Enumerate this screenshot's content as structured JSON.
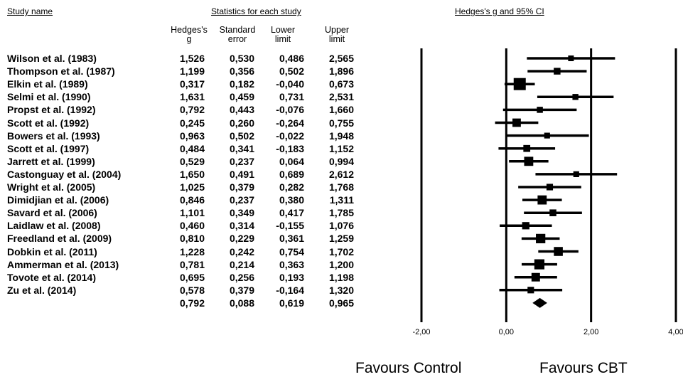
{
  "headers": {
    "study_name": "Study name",
    "statistics": "Statistics for each study",
    "plot_title": "Hedges's g and 95% CI"
  },
  "columns": [
    {
      "line1": "Hedges's",
      "line2": "g"
    },
    {
      "line1": "Standard",
      "line2": "error"
    },
    {
      "line1": "Lower",
      "line2": "limit"
    },
    {
      "line1": "Upper",
      "line2": "limit"
    }
  ],
  "chart_data": {
    "type": "forest",
    "title": "Hedges's g and 95% CI",
    "xlim": [
      -2,
      4
    ],
    "xticks": [
      {
        "value": -2,
        "label": "-2,00"
      },
      {
        "value": 0,
        "label": "0,00"
      },
      {
        "value": 2,
        "label": "2,00"
      },
      {
        "value": 4,
        "label": "4,00"
      }
    ],
    "studies": [
      {
        "name": "Wilson et al. (1983)",
        "g": 1.526,
        "se": 0.53,
        "lower": 0.486,
        "upper": 2.565,
        "g_label": "1,526",
        "se_label": "0,530",
        "lower_label": "0,486",
        "upper_label": "2,565"
      },
      {
        "name": "Thompson et al. (1987)",
        "g": 1.199,
        "se": 0.356,
        "lower": 0.502,
        "upper": 1.896,
        "g_label": "1,199",
        "se_label": "0,356",
        "lower_label": "0,502",
        "upper_label": "1,896"
      },
      {
        "name": "Elkin et al. (1989)",
        "g": 0.317,
        "se": 0.182,
        "lower": -0.04,
        "upper": 0.673,
        "g_label": "0,317",
        "se_label": "0,182",
        "lower_label": "-0,040",
        "upper_label": "0,673"
      },
      {
        "name": "Selmi et al. (1990)",
        "g": 1.631,
        "se": 0.459,
        "lower": 0.731,
        "upper": 2.531,
        "g_label": "1,631",
        "se_label": "0,459",
        "lower_label": "0,731",
        "upper_label": "2,531"
      },
      {
        "name": "Propst et al. (1992)",
        "g": 0.792,
        "se": 0.443,
        "lower": -0.076,
        "upper": 1.66,
        "g_label": "0,792",
        "se_label": "0,443",
        "lower_label": "-0,076",
        "upper_label": "1,660"
      },
      {
        "name": "Scott et al. (1992)",
        "g": 0.245,
        "se": 0.26,
        "lower": -0.264,
        "upper": 0.755,
        "g_label": "0,245",
        "se_label": "0,260",
        "lower_label": "-0,264",
        "upper_label": "0,755"
      },
      {
        "name": "Bowers et al. (1993)",
        "g": 0.963,
        "se": 0.502,
        "lower": -0.022,
        "upper": 1.948,
        "g_label": "0,963",
        "se_label": "0,502",
        "lower_label": "-0,022",
        "upper_label": "1,948"
      },
      {
        "name": "Scott et al. (1997)",
        "g": 0.484,
        "se": 0.341,
        "lower": -0.183,
        "upper": 1.152,
        "g_label": "0,484",
        "se_label": "0,341",
        "lower_label": "-0,183",
        "upper_label": "1,152"
      },
      {
        "name": "Jarrett et al. (1999)",
        "g": 0.529,
        "se": 0.237,
        "lower": 0.064,
        "upper": 0.994,
        "g_label": "0,529",
        "se_label": "0,237",
        "lower_label": "0,064",
        "upper_label": "0,994"
      },
      {
        "name": "Castonguay et al. (2004)",
        "g": 1.65,
        "se": 0.491,
        "lower": 0.689,
        "upper": 2.612,
        "g_label": "1,650",
        "se_label": "0,491",
        "lower_label": "0,689",
        "upper_label": "2,612"
      },
      {
        "name": "Wright et al. (2005)",
        "g": 1.025,
        "se": 0.379,
        "lower": 0.282,
        "upper": 1.768,
        "g_label": "1,025",
        "se_label": "0,379",
        "lower_label": "0,282",
        "upper_label": "1,768"
      },
      {
        "name": "Dimidjian et al. (2006)",
        "g": 0.846,
        "se": 0.237,
        "lower": 0.38,
        "upper": 1.311,
        "g_label": "0,846",
        "se_label": "0,237",
        "lower_label": "0,380",
        "upper_label": "1,311"
      },
      {
        "name": "Savard et al. (2006)",
        "g": 1.101,
        "se": 0.349,
        "lower": 0.417,
        "upper": 1.785,
        "g_label": "1,101",
        "se_label": "0,349",
        "lower_label": "0,417",
        "upper_label": "1,785"
      },
      {
        "name": "Laidlaw et al. (2008)",
        "g": 0.46,
        "se": 0.314,
        "lower": -0.155,
        "upper": 1.076,
        "g_label": "0,460",
        "se_label": "0,314",
        "lower_label": "-0,155",
        "upper_label": "1,076"
      },
      {
        "name": "Freedland et al. (2009)",
        "g": 0.81,
        "se": 0.229,
        "lower": 0.361,
        "upper": 1.259,
        "g_label": "0,810",
        "se_label": "0,229",
        "lower_label": "0,361",
        "upper_label": "1,259"
      },
      {
        "name": "Dobkin et al. (2011)",
        "g": 1.228,
        "se": 0.242,
        "lower": 0.754,
        "upper": 1.702,
        "g_label": "1,228",
        "se_label": "0,242",
        "lower_label": "0,754",
        "upper_label": "1,702"
      },
      {
        "name": "Ammerman et al. (2013)",
        "g": 0.781,
        "se": 0.214,
        "lower": 0.363,
        "upper": 1.2,
        "g_label": "0,781",
        "se_label": "0,214",
        "lower_label": "0,363",
        "upper_label": "1,200"
      },
      {
        "name": "Tovote et al. (2014)",
        "g": 0.695,
        "se": 0.256,
        "lower": 0.193,
        "upper": 1.198,
        "g_label": "0,695",
        "se_label": "0,256",
        "lower_label": "0,193",
        "upper_label": "1,198"
      },
      {
        "name": "Zu et al. (2014)",
        "g": 0.578,
        "se": 0.379,
        "lower": -0.164,
        "upper": 1.32,
        "g_label": "0,578",
        "se_label": "0,379",
        "lower_label": "-0,164",
        "upper_label": "1,320"
      }
    ],
    "summary": {
      "g": 0.792,
      "se": 0.088,
      "lower": 0.619,
      "upper": 0.965,
      "g_label": "0,792",
      "se_label": "0,088",
      "lower_label": "0,619",
      "upper_label": "0,965"
    },
    "favours_left": "Favours Control",
    "favours_right": "Favours CBT"
  }
}
